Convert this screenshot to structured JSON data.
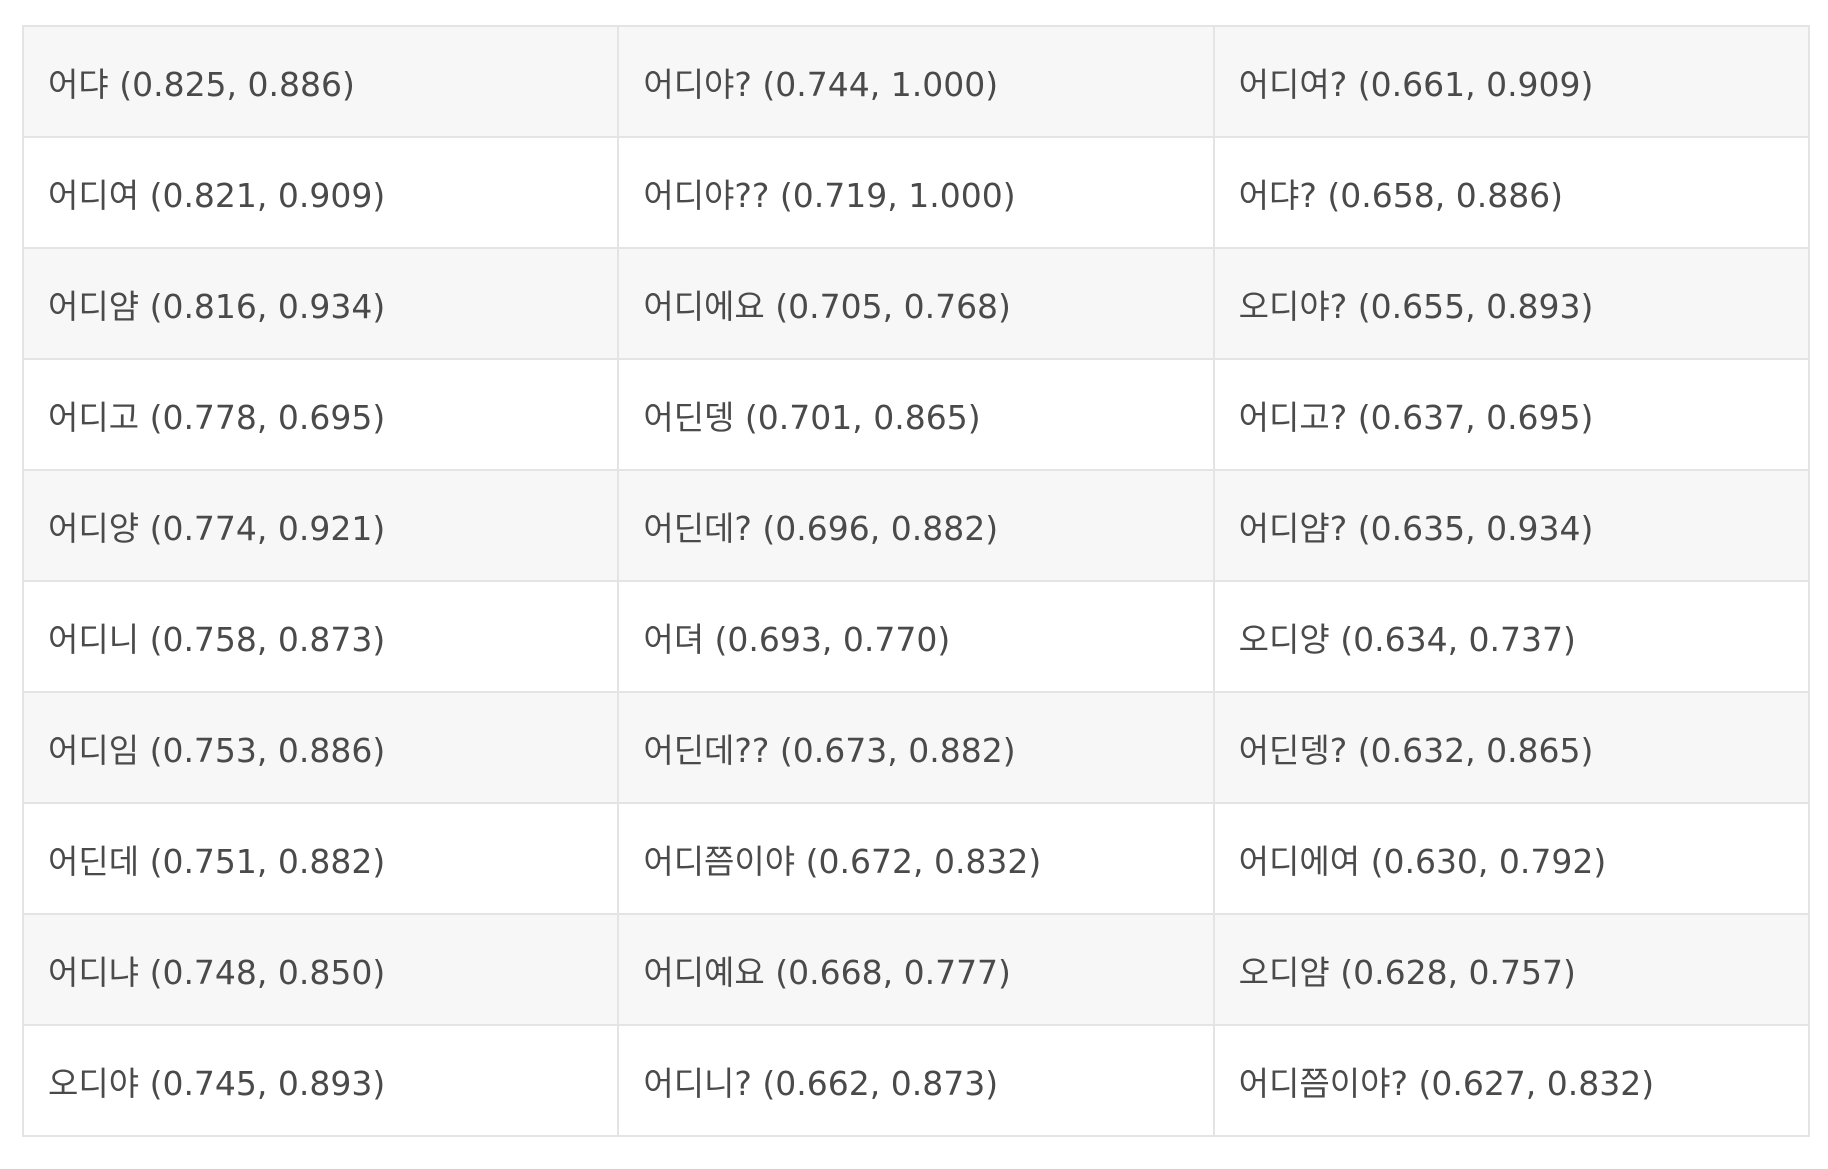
{
  "table": {
    "rows": [
      [
        "어댜 (0.825, 0.886)",
        "어디야? (0.744, 1.000)",
        "어디여? (0.661, 0.909)"
      ],
      [
        "어디여 (0.821, 0.909)",
        "어디야?? (0.719, 1.000)",
        "어댜? (0.658, 0.886)"
      ],
      [
        "어디얌 (0.816, 0.934)",
        "어디에요 (0.705, 0.768)",
        "오디야? (0.655, 0.893)"
      ],
      [
        "어디고 (0.778, 0.695)",
        "어딘뎅 (0.701, 0.865)",
        "어디고? (0.637, 0.695)"
      ],
      [
        "어디양 (0.774, 0.921)",
        "어딘데? (0.696, 0.882)",
        "어디얌? (0.635, 0.934)"
      ],
      [
        "어디니 (0.758, 0.873)",
        "어뎌 (0.693, 0.770)",
        "오디양 (0.634, 0.737)"
      ],
      [
        "어디임 (0.753, 0.886)",
        "어딘데?? (0.673, 0.882)",
        "어딘뎅? (0.632, 0.865)"
      ],
      [
        "어딘데 (0.751, 0.882)",
        "어디쯤이야 (0.672, 0.832)",
        "어디에여 (0.630, 0.792)"
      ],
      [
        "어디냐 (0.748, 0.850)",
        "어디예요 (0.668, 0.777)",
        "오디얌 (0.628, 0.757)"
      ],
      [
        "오디야 (0.745, 0.893)",
        "어디니? (0.662, 0.873)",
        "어디쯤이야? (0.627, 0.832)"
      ]
    ]
  }
}
